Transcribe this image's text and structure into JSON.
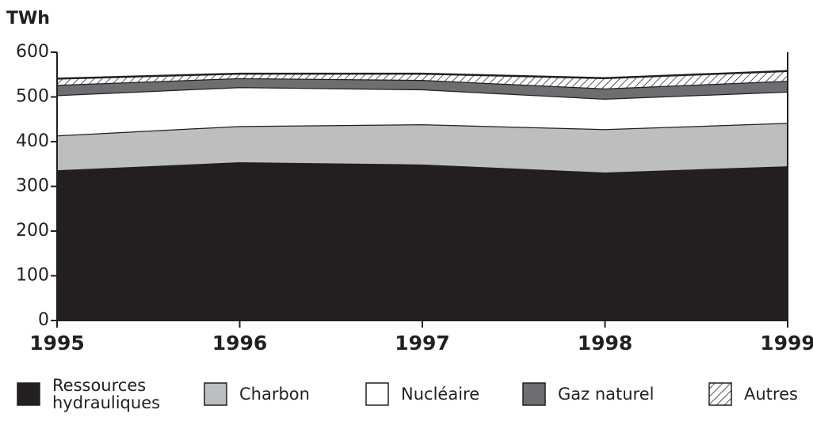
{
  "chart_data": {
    "type": "stacked_area",
    "y_label": "TWh",
    "categories": [
      "1995",
      "1996",
      "1997",
      "1998",
      "1999"
    ],
    "series": [
      {
        "name": "Ressources hydrauliques",
        "color": "#231f20",
        "values": [
          336,
          354,
          349,
          331,
          345
        ]
      },
      {
        "name": "Charbon",
        "color": "#bcbec0",
        "values": [
          78,
          81,
          90,
          97,
          97
        ]
      },
      {
        "name": "Nucléaire",
        "color": "#ffffff",
        "values": [
          90,
          87,
          78,
          68,
          70
        ]
      },
      {
        "name": "Gaz naturel",
        "color": "#6d6e71",
        "values": [
          23,
          20,
          21,
          23,
          24
        ]
      },
      {
        "name": "Autres",
        "color": "#ffffff",
        "pattern": "hatch",
        "values": [
          14,
          10,
          14,
          23,
          22
        ]
      }
    ],
    "ylim": [
      0,
      600
    ],
    "yticks": [
      0,
      100,
      200,
      300,
      400,
      500,
      600
    ],
    "grid": false
  }
}
